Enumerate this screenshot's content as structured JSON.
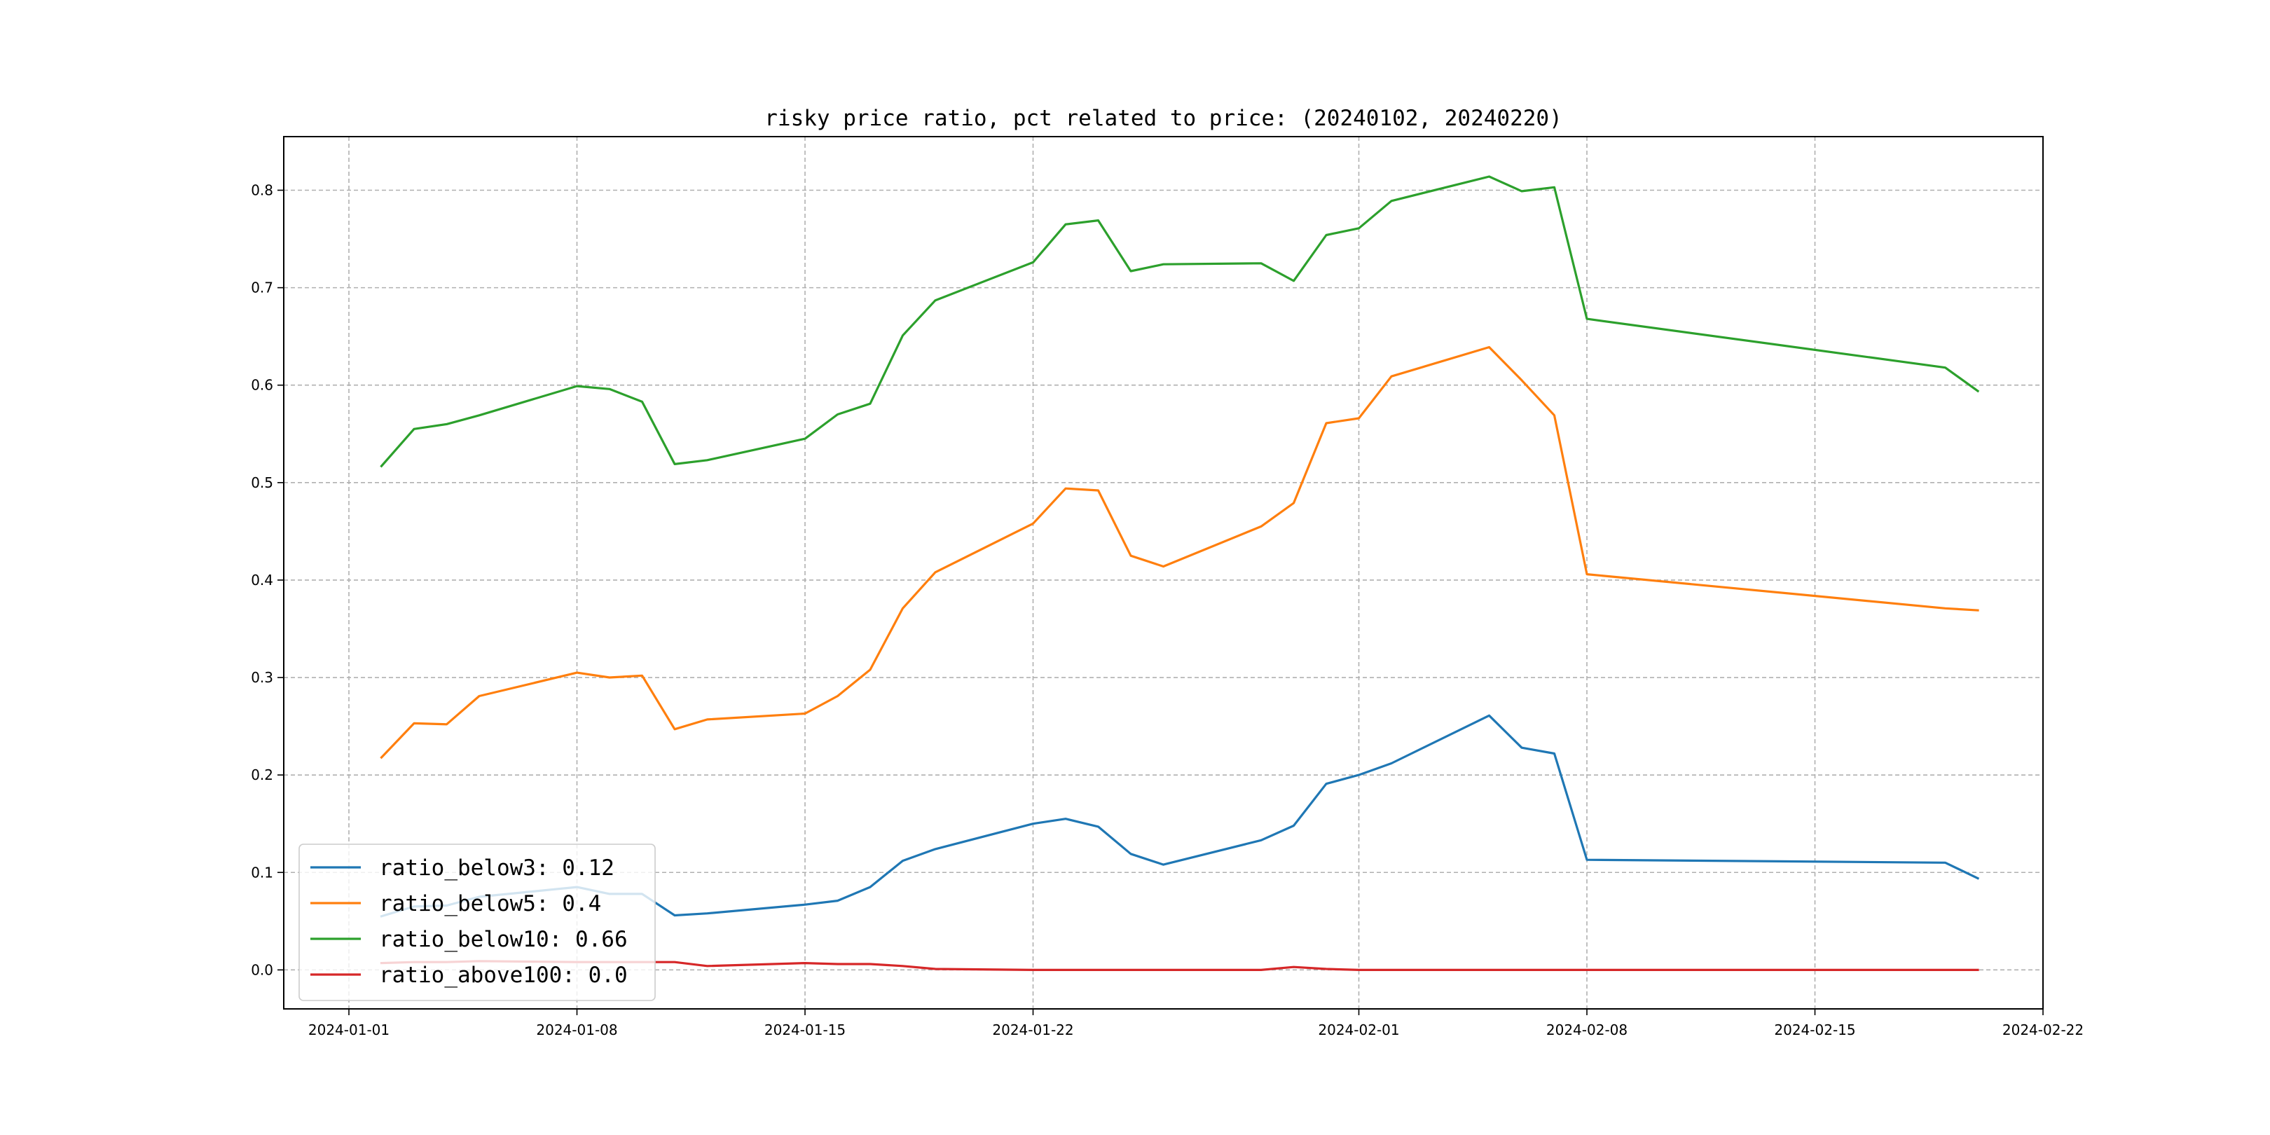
{
  "chart_data": {
    "type": "line",
    "title": "risky price ratio, pct related to price: (20240102, 20240220)",
    "xlabel": "",
    "ylabel": "",
    "x_axis_type": "date",
    "xlim": [
      "2023-12-30",
      "2024-02-22"
    ],
    "ylim": [
      -0.04,
      0.855
    ],
    "grid": true,
    "grid_style": "dashed",
    "legend_position": "lower-left",
    "x_ticks": [
      "2024-01-01",
      "2024-01-08",
      "2024-01-15",
      "2024-01-22",
      "2024-02-01",
      "2024-02-08",
      "2024-02-15",
      "2024-02-22"
    ],
    "y_ticks": [
      "0.0",
      "0.1",
      "0.2",
      "0.3",
      "0.4",
      "0.5",
      "0.6",
      "0.7",
      "0.8"
    ],
    "x": [
      "2024-01-02",
      "2024-01-03",
      "2024-01-04",
      "2024-01-05",
      "2024-01-08",
      "2024-01-09",
      "2024-01-10",
      "2024-01-11",
      "2024-01-12",
      "2024-01-15",
      "2024-01-16",
      "2024-01-17",
      "2024-01-18",
      "2024-01-19",
      "2024-01-22",
      "2024-01-23",
      "2024-01-24",
      "2024-01-25",
      "2024-01-26",
      "2024-01-29",
      "2024-01-30",
      "2024-01-31",
      "2024-02-01",
      "2024-02-02",
      "2024-02-05",
      "2024-02-06",
      "2024-02-07",
      "2024-02-08",
      "2024-02-19",
      "2024-02-20"
    ],
    "series": [
      {
        "name": "ratio_below3",
        "legend_label": "ratio_below3: 0.12",
        "color": "#1f77b4",
        "values": [
          0.055,
          0.065,
          0.066,
          0.075,
          0.085,
          0.078,
          0.078,
          0.056,
          0.058,
          0.067,
          0.071,
          0.085,
          0.112,
          0.124,
          0.15,
          0.155,
          0.147,
          0.119,
          0.108,
          0.133,
          0.148,
          0.191,
          0.2,
          0.212,
          0.261,
          0.228,
          0.222,
          0.113,
          0.11,
          0.094
        ]
      },
      {
        "name": "ratio_below5",
        "legend_label": "ratio_below5: 0.4",
        "color": "#ff7f0e",
        "values": [
          0.218,
          0.253,
          0.252,
          0.281,
          0.305,
          0.3,
          0.302,
          0.247,
          0.257,
          0.263,
          0.281,
          0.308,
          0.371,
          0.408,
          0.458,
          0.494,
          0.492,
          0.425,
          0.414,
          0.455,
          0.479,
          0.561,
          0.566,
          0.609,
          0.639,
          0.605,
          0.569,
          0.406,
          0.371,
          0.369
        ]
      },
      {
        "name": "ratio_below10",
        "legend_label": "ratio_below10: 0.66",
        "color": "#2ca02c",
        "values": [
          0.517,
          0.555,
          0.56,
          0.569,
          0.599,
          0.596,
          0.583,
          0.519,
          0.523,
          0.545,
          0.57,
          0.581,
          0.651,
          0.687,
          0.726,
          0.765,
          0.769,
          0.717,
          0.724,
          0.725,
          0.707,
          0.754,
          0.761,
          0.789,
          0.814,
          0.799,
          0.803,
          0.668,
          0.618,
          0.594
        ]
      },
      {
        "name": "ratio_above100",
        "legend_label": "ratio_above100: 0.0",
        "color": "#d62728",
        "values": [
          0.007,
          0.008,
          0.008,
          0.009,
          0.008,
          0.008,
          0.008,
          0.008,
          0.004,
          0.007,
          0.006,
          0.006,
          0.004,
          0.001,
          0.0,
          0.0,
          0.0,
          0.0,
          0.0,
          0.0,
          0.003,
          0.001,
          0.0,
          0.0,
          0.0,
          0.0,
          0.0,
          0.0,
          0.0,
          0.0
        ]
      }
    ]
  }
}
